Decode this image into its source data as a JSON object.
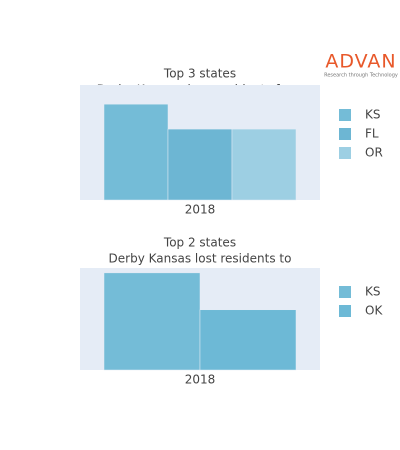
{
  "logo": {
    "text": "ADVAN",
    "tagline": "Research through Technology"
  },
  "chart_data": [
    {
      "type": "bar",
      "title": "Top 3 states",
      "subtitle": "Derby Kansas drew residents from",
      "categories": [
        "2018"
      ],
      "ylim": [
        0,
        120
      ],
      "series": [
        {
          "name": "KS",
          "color": "#74bcd7",
          "values": [
            100
          ]
        },
        {
          "name": "FL",
          "color": "#6db6d3",
          "values": [
            74
          ]
        },
        {
          "name": "OR",
          "color": "#9dcfe3",
          "values": [
            74
          ]
        }
      ]
    },
    {
      "type": "bar",
      "title": "Top 2 states",
      "subtitle": "Derby Kansas lost residents to",
      "categories": [
        "2018"
      ],
      "ylim": [
        0,
        105
      ],
      "series": [
        {
          "name": "KS",
          "color": "#74bcd7",
          "values": [
            100
          ]
        },
        {
          "name": "OK",
          "color": "#6db9d6",
          "values": [
            62
          ]
        }
      ]
    }
  ]
}
